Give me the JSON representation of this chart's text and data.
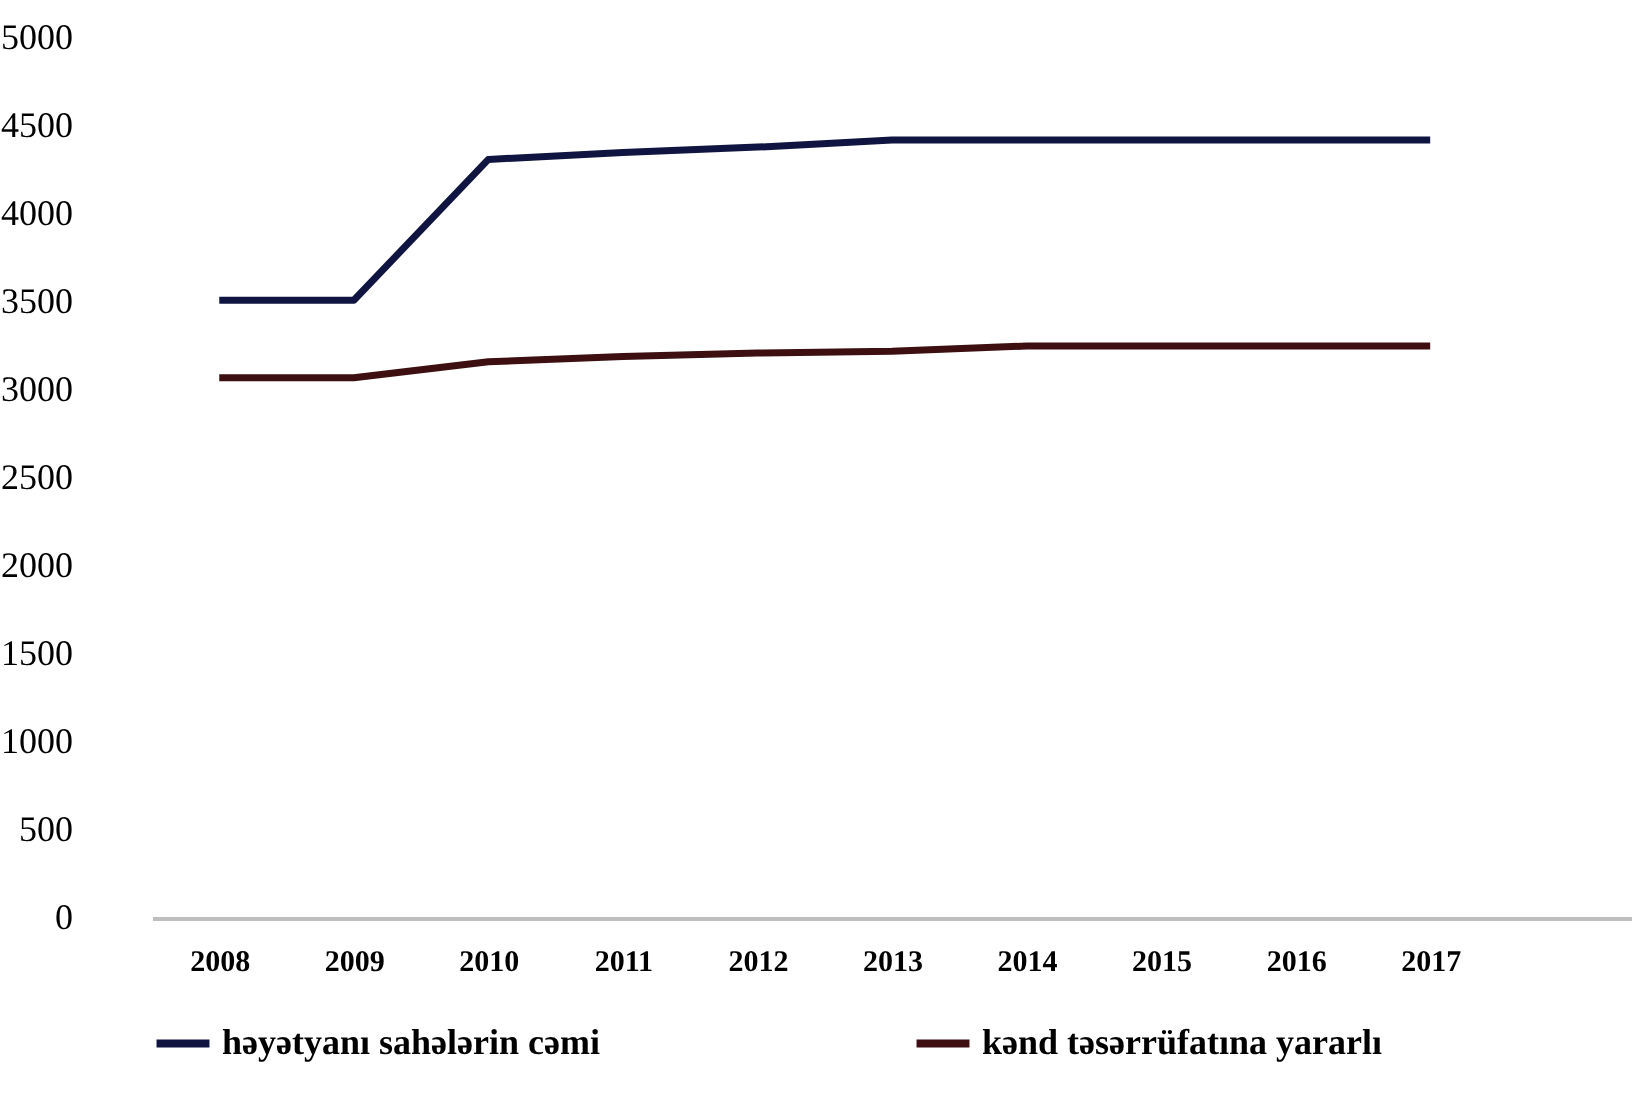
{
  "chart_data": {
    "type": "line",
    "categories": [
      "2008",
      "2009",
      "2010",
      "2011",
      "2012",
      "2013",
      "2014",
      "2015",
      "2016",
      "2017"
    ],
    "series": [
      {
        "name": "həyətyanı sahələrin cəmi",
        "color": "#0f1540",
        "values": [
          3510,
          3510,
          4310,
          4350,
          4380,
          4420,
          4420,
          4420,
          4420,
          4420
        ]
      },
      {
        "name": "kənd təsərrüfatına yararlı",
        "color": "#3d0f10",
        "values": [
          3070,
          3070,
          3160,
          3190,
          3210,
          3220,
          3250,
          3250,
          3250,
          3250
        ]
      }
    ],
    "ylim": [
      0,
      5000
    ],
    "yticks": [
      0,
      500,
      1000,
      1500,
      2000,
      2500,
      3000,
      3500,
      4000,
      4500,
      5000
    ],
    "grid": false,
    "legend": "bottom",
    "marker": "none",
    "line_style": "solid"
  }
}
